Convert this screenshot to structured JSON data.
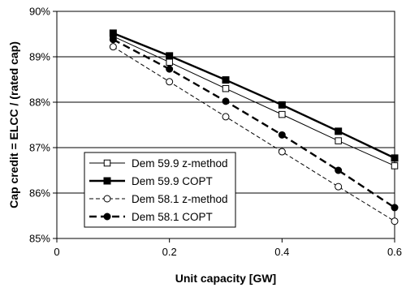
{
  "chart_data": {
    "type": "line",
    "xlabel": "Unit capacity [GW]",
    "ylabel": "Cap credit = ELCC / (rated cap)",
    "xlim": [
      0,
      0.6
    ],
    "ylim": [
      85,
      90
    ],
    "x_ticks": [
      "0",
      "0.2",
      "0.4",
      "0.6"
    ],
    "y_ticks": [
      "85%",
      "86%",
      "87%",
      "88%",
      "89%",
      "90%"
    ],
    "grid": "horizontal",
    "legend_position": "bottom-left",
    "x": [
      0.1,
      0.2,
      0.3,
      0.4,
      0.5,
      0.6
    ],
    "series": [
      {
        "name": "Dem 59.9 z-method",
        "values": [
          89.45,
          88.88,
          88.3,
          87.73,
          87.15,
          86.6
        ],
        "line": "solid-thin",
        "marker": "open-square",
        "color": "#000000"
      },
      {
        "name": "Dem 59.9 COPT",
        "values": [
          89.52,
          89.02,
          88.49,
          87.94,
          87.36,
          86.77
        ],
        "line": "solid-thick",
        "marker": "filled-square",
        "color": "#000000"
      },
      {
        "name": "Dem 58.1 z-method",
        "values": [
          89.22,
          88.45,
          87.68,
          86.91,
          86.14,
          85.38
        ],
        "line": "dashed-thin",
        "marker": "open-circle",
        "color": "#000000"
      },
      {
        "name": "Dem 58.1 COPT",
        "values": [
          89.38,
          88.73,
          88.02,
          87.28,
          86.5,
          85.68
        ],
        "line": "dashed-thick",
        "marker": "filled-circle",
        "color": "#000000"
      }
    ]
  }
}
